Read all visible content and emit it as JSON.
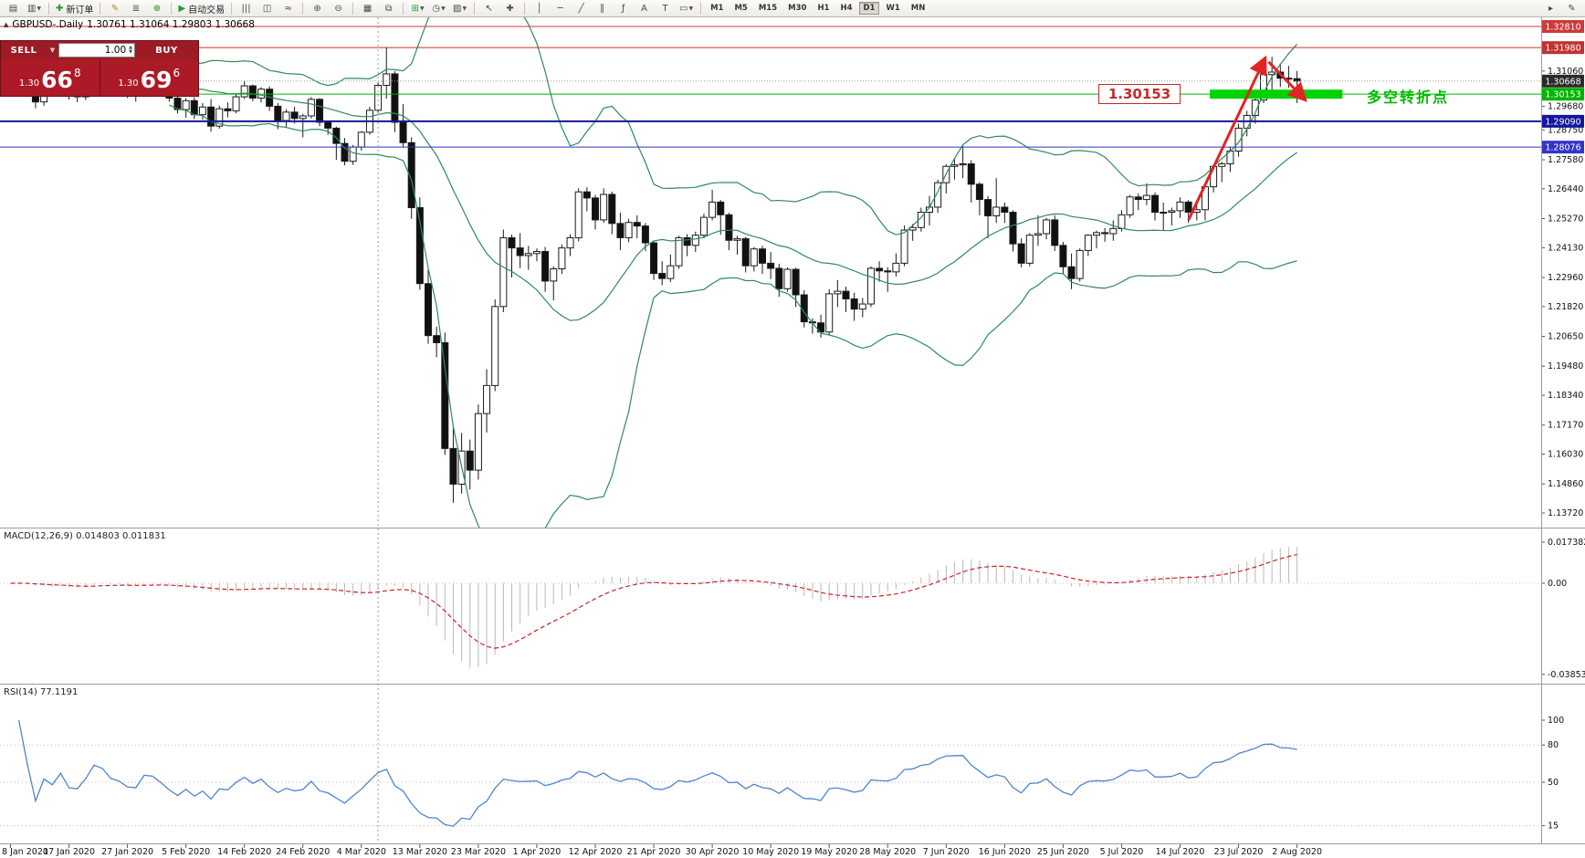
{
  "toolbar": {
    "groups": [
      {
        "items": [
          {
            "name": "new-chart",
            "glyph": "▤"
          },
          {
            "name": "chart-profiles",
            "glyph": "▥",
            "caret": true
          }
        ]
      },
      {
        "items": [
          {
            "name": "new-order",
            "glyph": "✚",
            "glyph_color": "#1f9d2c",
            "label": "新订单"
          }
        ]
      },
      {
        "items": [
          {
            "name": "metaeditor",
            "glyph": "✎",
            "glyph_color": "#b8860b"
          },
          {
            "name": "market-watch",
            "glyph": "≣",
            "glyph_color": "#555555"
          },
          {
            "name": "community",
            "glyph": "⊕",
            "glyph_color": "#228b22"
          }
        ]
      },
      {
        "items": [
          {
            "name": "autotrading",
            "glyph": "▶",
            "glyph_color": "#1e9e30",
            "label": "自动交易"
          }
        ]
      },
      {
        "items": [
          {
            "name": "bars-mode",
            "glyph": "|||"
          },
          {
            "name": "candles-mode",
            "glyph": "◫"
          },
          {
            "name": "line-mode",
            "glyph": "≈"
          }
        ]
      },
      {
        "items": [
          {
            "name": "zoom-in",
            "glyph": "⊕"
          },
          {
            "name": "zoom-out",
            "glyph": "⊖"
          }
        ]
      },
      {
        "items": [
          {
            "name": "tile-windows",
            "glyph": "▦"
          },
          {
            "name": "cascade-windows",
            "glyph": "⧉"
          }
        ]
      },
      {
        "items": [
          {
            "name": "indicators",
            "glyph": "⊞",
            "glyph_color": "#1f9d2c",
            "caret": true
          },
          {
            "name": "periods",
            "glyph": "◷",
            "caret": true
          },
          {
            "name": "templates",
            "glyph": "▨",
            "caret": true
          }
        ]
      },
      {
        "items": [
          {
            "name": "cursor",
            "glyph": "↖"
          },
          {
            "name": "crosshair",
            "glyph": "✚"
          }
        ]
      },
      {
        "items": [
          {
            "name": "vertical-line-tool",
            "glyph": "│"
          },
          {
            "name": "horizontal-line-tool",
            "glyph": "─"
          },
          {
            "name": "trendline-tool",
            "glyph": "╱"
          },
          {
            "name": "channel-tool",
            "glyph": "∥"
          },
          {
            "name": "fibonacci-tool",
            "glyph": "ƒ"
          },
          {
            "name": "text-tool",
            "glyph": "A"
          },
          {
            "name": "label-tool",
            "glyph": "T"
          },
          {
            "name": "shapes-tool",
            "glyph": "▭",
            "caret": true
          }
        ]
      }
    ],
    "timeframes": [
      "M1",
      "M5",
      "M15",
      "M30",
      "H1",
      "H4",
      "D1",
      "W1",
      "MN"
    ],
    "active_timeframe": "D1",
    "right_icons": [
      {
        "name": "scroll-to-end",
        "glyph": "▸"
      },
      {
        "name": "chart-edit",
        "glyph": "✎"
      }
    ]
  },
  "chart_header": {
    "symbol_period": "GBPUSD-.Daily",
    "ohlc_text": "1.30761 1.31064 1.29803 1.30668"
  },
  "trade_panel": {
    "sell_label": "SELL",
    "buy_label": "BUY",
    "volume": "1.00",
    "sell_price_prefix": "1.30",
    "sell_price_big": "66",
    "sell_price_sup": "8",
    "buy_price_prefix": "1.30",
    "buy_price_big": "69",
    "buy_price_sup": "6"
  },
  "indicators": {
    "macd_label": "MACD(12,26,9) 0.014803 0.011831",
    "rsi_label": "RSI(14) 77.1191"
  },
  "annotations": {
    "price_callout": "1.30153",
    "turning_point_label": "多空转折点"
  },
  "axes": {
    "price_ticks": [
      "1.31060",
      "1.29680",
      "1.28750",
      "1.27580",
      "1.26440",
      "1.25270",
      "1.24130",
      "1.22960",
      "1.21820",
      "1.20650",
      "1.19480",
      "1.18340",
      "1.17170",
      "1.16030",
      "1.14860",
      "1.13720"
    ],
    "macd_ticks": [
      "0.017382",
      "0.00",
      "-0.038538"
    ],
    "rsi_ticks": [
      "100",
      "80",
      "50",
      "15"
    ],
    "dates": [
      "8 Jan 2020",
      "17 Jan 2020",
      "27 Jan 2020",
      "5 Feb 2020",
      "14 Feb 2020",
      "24 Feb 2020",
      "4 Mar 2020",
      "13 Mar 2020",
      "23 Mar 2020",
      "1 Apr 2020",
      "12 Apr 2020",
      "21 Apr 2020",
      "30 Apr 2020",
      "10 May 2020",
      "19 May 2020",
      "28 May 2020",
      "7 Jun 2020",
      "16 Jun 2020",
      "25 Jun 2020",
      "5 Jul 2020",
      "14 Jul 2020",
      "23 Jul 2020",
      "2 Aug 2020"
    ]
  },
  "chart_data": {
    "type": "candlestick",
    "symbol": "GBPUSD-",
    "timeframe": "Daily",
    "current_ohlc": {
      "open": 1.30761,
      "high": 1.31064,
      "low": 1.29803,
      "close": 1.30668
    },
    "candles": [
      [
        1.312,
        1.3142,
        1.3078,
        1.3095
      ],
      [
        1.3095,
        1.3116,
        1.308,
        1.31
      ],
      [
        1.31,
        1.311,
        1.3046,
        1.3065
      ],
      [
        1.3065,
        1.3076,
        1.296,
        1.2985
      ],
      [
        1.2985,
        1.3056,
        1.297,
        1.3045
      ],
      [
        1.3045,
        1.306,
        1.3006,
        1.3025
      ],
      [
        1.3025,
        1.3084,
        1.301,
        1.307
      ],
      [
        1.307,
        1.308,
        1.2994,
        1.301
      ],
      [
        1.301,
        1.303,
        1.2984,
        1.3005
      ],
      [
        1.3005,
        1.306,
        1.2992,
        1.305
      ],
      [
        1.305,
        1.3146,
        1.304,
        1.3135
      ],
      [
        1.3135,
        1.3152,
        1.3096,
        1.312
      ],
      [
        1.312,
        1.3126,
        1.305,
        1.307
      ],
      [
        1.307,
        1.309,
        1.3038,
        1.3055
      ],
      [
        1.3055,
        1.3066,
        1.3,
        1.302
      ],
      [
        1.302,
        1.3042,
        1.2986,
        1.3015
      ],
      [
        1.3015,
        1.3106,
        1.3004,
        1.309
      ],
      [
        1.309,
        1.3118,
        1.3058,
        1.3085
      ],
      [
        1.3085,
        1.3096,
        1.303,
        1.3048
      ],
      [
        1.3048,
        1.306,
        1.2986,
        1.3
      ],
      [
        1.3,
        1.3012,
        1.294,
        1.2955
      ],
      [
        1.2955,
        1.3,
        1.2923,
        1.299
      ],
      [
        1.299,
        1.3003,
        1.2918,
        1.2935
      ],
      [
        1.2935,
        1.298,
        1.2916,
        1.2965
      ],
      [
        1.2965,
        1.2996,
        1.2868,
        1.289
      ],
      [
        1.289,
        1.297,
        1.288,
        1.2958
      ],
      [
        1.2958,
        1.2983,
        1.2924,
        1.295
      ],
      [
        1.295,
        1.3016,
        1.294,
        1.3005
      ],
      [
        1.3005,
        1.3068,
        1.2996,
        1.3048
      ],
      [
        1.3048,
        1.3053,
        1.2988,
        1.3
      ],
      [
        1.3,
        1.3043,
        1.2983,
        1.3035
      ],
      [
        1.3035,
        1.3046,
        1.295,
        1.2968
      ],
      [
        1.2968,
        1.298,
        1.2878,
        1.2912
      ],
      [
        1.2912,
        1.2956,
        1.2886,
        1.2945
      ],
      [
        1.2945,
        1.2966,
        1.29,
        1.292
      ],
      [
        1.292,
        1.2938,
        1.2846,
        1.293
      ],
      [
        1.293,
        1.3004,
        1.292,
        1.2995
      ],
      [
        1.2995,
        1.3,
        1.289,
        1.2905
      ],
      [
        1.2905,
        1.291,
        1.2856,
        1.2882
      ],
      [
        1.2882,
        1.2888,
        1.2758,
        1.2822
      ],
      [
        1.2822,
        1.2843,
        1.2736,
        1.2752
      ],
      [
        1.2752,
        1.2816,
        1.2738,
        1.2808
      ],
      [
        1.2808,
        1.287,
        1.2794,
        1.2866
      ],
      [
        1.2866,
        1.2966,
        1.2856,
        1.2952
      ],
      [
        1.2952,
        1.306,
        1.2942,
        1.305
      ],
      [
        1.305,
        1.32,
        1.2998,
        1.3095
      ],
      [
        1.3095,
        1.3106,
        1.2866,
        1.2905
      ],
      [
        1.2905,
        1.2976,
        1.2806,
        1.2825
      ],
      [
        1.2825,
        1.2846,
        1.2526,
        1.257
      ],
      [
        1.257,
        1.261,
        1.2248,
        1.2272
      ],
      [
        1.2272,
        1.2328,
        1.2036,
        1.2068
      ],
      [
        1.2068,
        1.2103,
        1.1983,
        1.204
      ],
      [
        1.204,
        1.208,
        1.16,
        1.1625
      ],
      [
        1.1625,
        1.171,
        1.1412,
        1.1485
      ],
      [
        1.1485,
        1.1686,
        1.1448,
        1.1615
      ],
      [
        1.1615,
        1.166,
        1.1464,
        1.154
      ],
      [
        1.154,
        1.1798,
        1.1503,
        1.1762
      ],
      [
        1.1762,
        1.1936,
        1.1688,
        1.1872
      ],
      [
        1.1872,
        1.221,
        1.185,
        1.2182
      ],
      [
        1.2182,
        1.2484,
        1.216,
        1.2452
      ],
      [
        1.2452,
        1.2464,
        1.2296,
        1.2412
      ],
      [
        1.2412,
        1.247,
        1.2333,
        1.2382
      ],
      [
        1.2382,
        1.242,
        1.2326,
        1.239
      ],
      [
        1.239,
        1.241,
        1.236,
        1.2398
      ],
      [
        1.2398,
        1.2416,
        1.224,
        1.2282
      ],
      [
        1.2282,
        1.234,
        1.2206,
        1.233
      ],
      [
        1.233,
        1.2426,
        1.231,
        1.2412
      ],
      [
        1.2412,
        1.2466,
        1.238,
        1.2452
      ],
      [
        1.2452,
        1.2646,
        1.2438,
        1.2632
      ],
      [
        1.2632,
        1.265,
        1.2556,
        1.2608
      ],
      [
        1.2608,
        1.262,
        1.2484,
        1.2522
      ],
      [
        1.2522,
        1.2646,
        1.251,
        1.2622
      ],
      [
        1.2622,
        1.2633,
        1.2466,
        1.2508
      ],
      [
        1.2508,
        1.255,
        1.2404,
        1.2452
      ],
      [
        1.2452,
        1.2526,
        1.2434,
        1.2512
      ],
      [
        1.2512,
        1.254,
        1.245,
        1.2498
      ],
      [
        1.2498,
        1.251,
        1.24,
        1.2432
      ],
      [
        1.2432,
        1.244,
        1.2286,
        1.2312
      ],
      [
        1.2312,
        1.236,
        1.2266,
        1.2292
      ],
      [
        1.2292,
        1.2386,
        1.2278,
        1.2342
      ],
      [
        1.2342,
        1.246,
        1.233,
        1.2452
      ],
      [
        1.2452,
        1.2466,
        1.238,
        1.2422
      ],
      [
        1.2422,
        1.2476,
        1.2396,
        1.2462
      ],
      [
        1.2462,
        1.2546,
        1.245,
        1.2532
      ],
      [
        1.2532,
        1.264,
        1.252,
        1.2592
      ],
      [
        1.2592,
        1.26,
        1.2464,
        1.2542
      ],
      [
        1.2542,
        1.255,
        1.2403,
        1.2442
      ],
      [
        1.2442,
        1.246,
        1.2386,
        1.2448
      ],
      [
        1.2448,
        1.2456,
        1.2316,
        1.2342
      ],
      [
        1.2342,
        1.2416,
        1.232,
        1.2408
      ],
      [
        1.2408,
        1.242,
        1.231,
        1.2352
      ],
      [
        1.2352,
        1.2396,
        1.229,
        1.2332
      ],
      [
        1.2332,
        1.235,
        1.222,
        1.2252
      ],
      [
        1.2252,
        1.2336,
        1.224,
        1.2328
      ],
      [
        1.2328,
        1.2334,
        1.218,
        1.2228
      ],
      [
        1.2228,
        1.2246,
        1.21,
        1.2122
      ],
      [
        1.2122,
        1.2136,
        1.2076,
        1.2118
      ],
      [
        1.2118,
        1.215,
        1.206,
        1.2082
      ],
      [
        1.2082,
        1.225,
        1.207,
        1.2232
      ],
      [
        1.2232,
        1.2286,
        1.218,
        1.2242
      ],
      [
        1.2242,
        1.226,
        1.216,
        1.2212
      ],
      [
        1.2212,
        1.2236,
        1.2126,
        1.2172
      ],
      [
        1.2172,
        1.2216,
        1.214,
        1.2192
      ],
      [
        1.2192,
        1.234,
        1.218,
        1.2332
      ],
      [
        1.2332,
        1.236,
        1.228,
        1.2322
      ],
      [
        1.2322,
        1.2336,
        1.224,
        1.2318
      ],
      [
        1.2318,
        1.239,
        1.23,
        1.2352
      ],
      [
        1.2352,
        1.25,
        1.234,
        1.2482
      ],
      [
        1.2482,
        1.2506,
        1.244,
        1.2492
      ],
      [
        1.2492,
        1.257,
        1.2476,
        1.2552
      ],
      [
        1.2552,
        1.2616,
        1.25,
        1.2572
      ],
      [
        1.2572,
        1.268,
        1.255,
        1.2668
      ],
      [
        1.2668,
        1.274,
        1.2626,
        1.2732
      ],
      [
        1.2732,
        1.276,
        1.268,
        1.2738
      ],
      [
        1.2738,
        1.2812,
        1.2686,
        1.2742
      ],
      [
        1.2742,
        1.2756,
        1.259,
        1.2662
      ],
      [
        1.2662,
        1.267,
        1.254,
        1.2602
      ],
      [
        1.2602,
        1.2616,
        1.245,
        1.2538
      ],
      [
        1.2538,
        1.2686,
        1.251,
        1.2572
      ],
      [
        1.2572,
        1.259,
        1.251,
        1.2552
      ],
      [
        1.2552,
        1.256,
        1.2398,
        1.2428
      ],
      [
        1.2428,
        1.245,
        1.2336,
        1.2352
      ],
      [
        1.2352,
        1.247,
        1.234,
        1.2462
      ],
      [
        1.2462,
        1.254,
        1.242,
        1.2468
      ],
      [
        1.2468,
        1.253,
        1.2446,
        1.2522
      ],
      [
        1.2522,
        1.254,
        1.24,
        1.2422
      ],
      [
        1.2422,
        1.2436,
        1.231,
        1.2338
      ],
      [
        1.2338,
        1.239,
        1.225,
        1.2292
      ],
      [
        1.2292,
        1.241,
        1.228,
        1.2402
      ],
      [
        1.2402,
        1.2466,
        1.238,
        1.2462
      ],
      [
        1.2462,
        1.248,
        1.241,
        1.2472
      ],
      [
        1.2472,
        1.249,
        1.2436,
        1.2468
      ],
      [
        1.2468,
        1.252,
        1.244,
        1.2488
      ],
      [
        1.2488,
        1.256,
        1.2476,
        1.2542
      ],
      [
        1.2542,
        1.262,
        1.253,
        1.2612
      ],
      [
        1.2612,
        1.2626,
        1.256,
        1.2602
      ],
      [
        1.2602,
        1.2666,
        1.258,
        1.2618
      ],
      [
        1.2618,
        1.263,
        1.252,
        1.2552
      ],
      [
        1.2552,
        1.259,
        1.248,
        1.2552
      ],
      [
        1.2552,
        1.257,
        1.25,
        1.2558
      ],
      [
        1.2558,
        1.261,
        1.253,
        1.2592
      ],
      [
        1.2592,
        1.26,
        1.251,
        1.2552
      ],
      [
        1.2552,
        1.258,
        1.252,
        1.2562
      ],
      [
        1.2562,
        1.2656,
        1.252,
        1.2652
      ],
      [
        1.2652,
        1.2738,
        1.263,
        1.2732
      ],
      [
        1.2732,
        1.275,
        1.267,
        1.2742
      ],
      [
        1.2742,
        1.281,
        1.271,
        1.2792
      ],
      [
        1.2792,
        1.29,
        1.277,
        1.2882
      ],
      [
        1.2882,
        1.295,
        1.285,
        1.2932
      ],
      [
        1.2932,
        1.301,
        1.29,
        1.2992
      ],
      [
        1.2992,
        1.31,
        1.298,
        1.3092
      ],
      [
        1.3092,
        1.3162,
        1.3002,
        1.3102
      ],
      [
        1.3102,
        1.3133,
        1.3044,
        1.3078
      ],
      [
        1.3078,
        1.3126,
        1.304,
        1.3076
      ],
      [
        1.30761,
        1.31064,
        1.29803,
        1.30668
      ]
    ],
    "bollinger": {
      "period": 20,
      "deviation": 2,
      "color": "#2e8b57"
    },
    "macd": {
      "fast": 12,
      "slow": 26,
      "signal_period": 9,
      "main_value": 0.014803,
      "signal_value": 0.011831,
      "histogram_color": "#b9b9b9",
      "signal_color": "#cc2222"
    },
    "rsi": {
      "period": 14,
      "value": 77.1191,
      "color": "#4d85d1",
      "levels": [
        80,
        50,
        15
      ]
    },
    "hlines": [
      {
        "text": "1.32810",
        "line": "#cc3a3a",
        "bg": "#cc3a3a",
        "style": "solid",
        "w": 1
      },
      {
        "text": "1.31980",
        "line": "#c03333",
        "bg": "#c03333",
        "style": "solid",
        "w": 1
      },
      {
        "text": "1.30668",
        "line": "#9a9a9a",
        "bg": "#2b2b2b",
        "style": "dotted",
        "w": 1
      },
      {
        "text": "1.30153",
        "line": "#00b400",
        "bg": "#00b400",
        "style": "solid",
        "w": 1
      },
      {
        "text": "1.29090",
        "line": "#16169c",
        "bg": "#16169c",
        "style": "solid",
        "w": 2
      },
      {
        "text": "1.28076",
        "line": "#3434c8",
        "bg": "#3434c8",
        "style": "solid",
        "w": 1
      }
    ],
    "vline_index": 44,
    "zone": {
      "price": 1.30153,
      "from_index": 144,
      "to_index": 159,
      "color": "#00d300"
    },
    "arrows": [
      {
        "from": [
          141,
          1.2521
        ],
        "to": [
          150.2,
          1.3158
        ]
      },
      {
        "from": [
          150.6,
          1.3142
        ],
        "to": [
          155,
          1.2992
        ]
      }
    ],
    "arrow_color": "#e02424"
  }
}
